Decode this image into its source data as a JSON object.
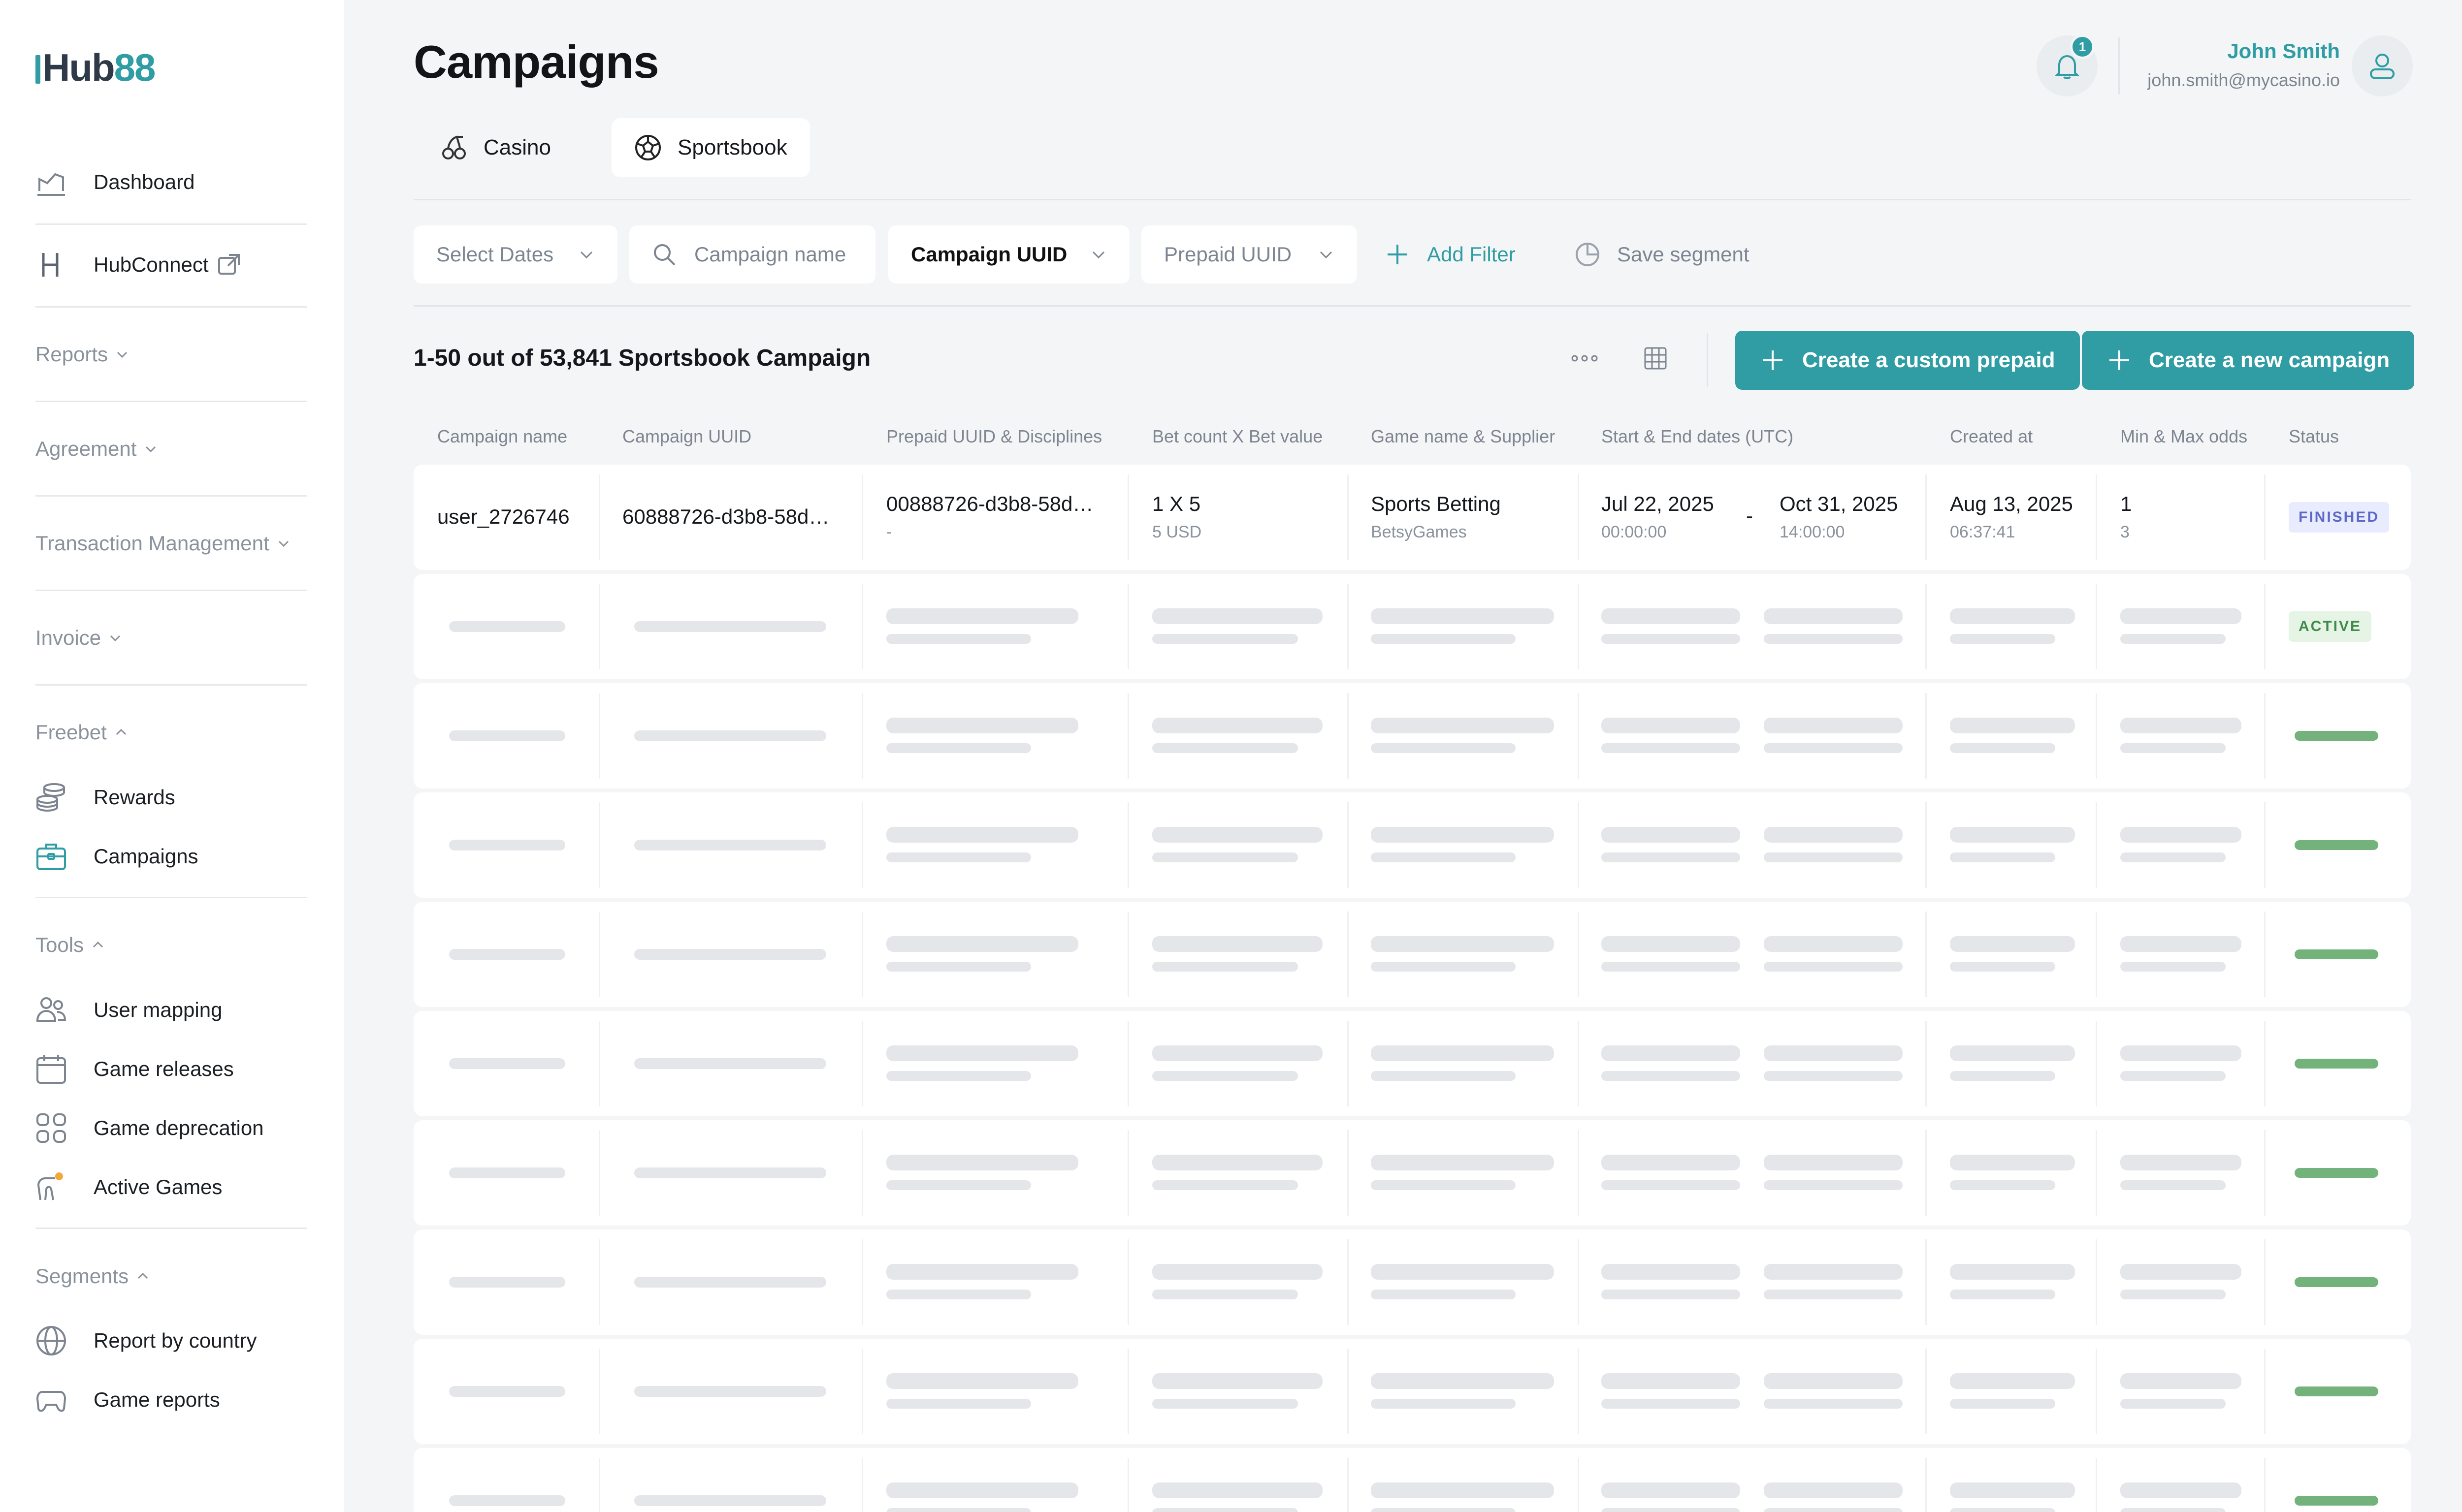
{
  "brand": {
    "logo_pre": "H",
    "logo_mid": "ub",
    "logo_accent": "88"
  },
  "sidebar": {
    "dashboard": "Dashboard",
    "hubconnect": "HubConnect",
    "reports": "Reports",
    "agreement": "Agreement",
    "transaction_management": "Transaction Management",
    "invoice": "Invoice",
    "freebet": "Freebet",
    "rewards": "Rewards",
    "campaigns": "Campaigns",
    "tools": "Tools",
    "user_mapping": "User mapping",
    "game_releases": "Game releases",
    "game_deprecation": "Game deprecation",
    "active_games": "Active Games",
    "segments": "Segments",
    "report_by_country": "Report by country",
    "game_reports": "Game reports"
  },
  "header": {
    "title": "Campaigns",
    "notification_count": "1",
    "user_name": "John Smith",
    "user_email": "john.smith@mycasino.io"
  },
  "tabs": {
    "casino": "Casino",
    "sportsbook": "Sportsbook"
  },
  "filters": {
    "select_dates": "Select Dates",
    "campaign_name_placeholder": "Campaign name",
    "campaign_uuid": "Campaign UUID",
    "prepaid_uuid": "Prepaid UUID",
    "add_filter": "Add Filter",
    "save_segment": "Save segment"
  },
  "results": {
    "count_label": "1-50 out of 53,841 Sportsbook Campaign",
    "create_prepaid": "Create a custom prepaid",
    "create_campaign": "Create a new campaign"
  },
  "table": {
    "headers": [
      "Campaign name",
      "Campaign UUID",
      "Prepaid UUID & Disciplines",
      "Bet count X Bet value",
      "Game name & Supplier",
      "Start & End dates (UTC)",
      "Created at",
      "Min & Max odds",
      "Status"
    ],
    "first_row": {
      "campaign_name": "user_2726746",
      "campaign_uuid": "60888726-d3b8-58d…",
      "prepaid_uuid": "00888726-d3b8-58d…",
      "disciplines": "-",
      "bet_count": "1 X 5",
      "bet_value": "5 USD",
      "game_name": "Sports Betting",
      "supplier": "BetsyGames",
      "start_date": "Jul 22, 2025",
      "start_time": "00:00:00",
      "date_sep": "-",
      "end_date": "Oct 31, 2025",
      "end_time": "14:00:00",
      "created_date": "Aug 13, 2025",
      "created_time": "06:37:41",
      "min_odds": "1",
      "max_odds": "3",
      "status": "FINISHED"
    },
    "second_row_status": "ACTIVE"
  },
  "colors": {
    "accent": "#2f9da3",
    "finished_badge": "#5e69c7",
    "active_badge": "#3f8c4a"
  }
}
